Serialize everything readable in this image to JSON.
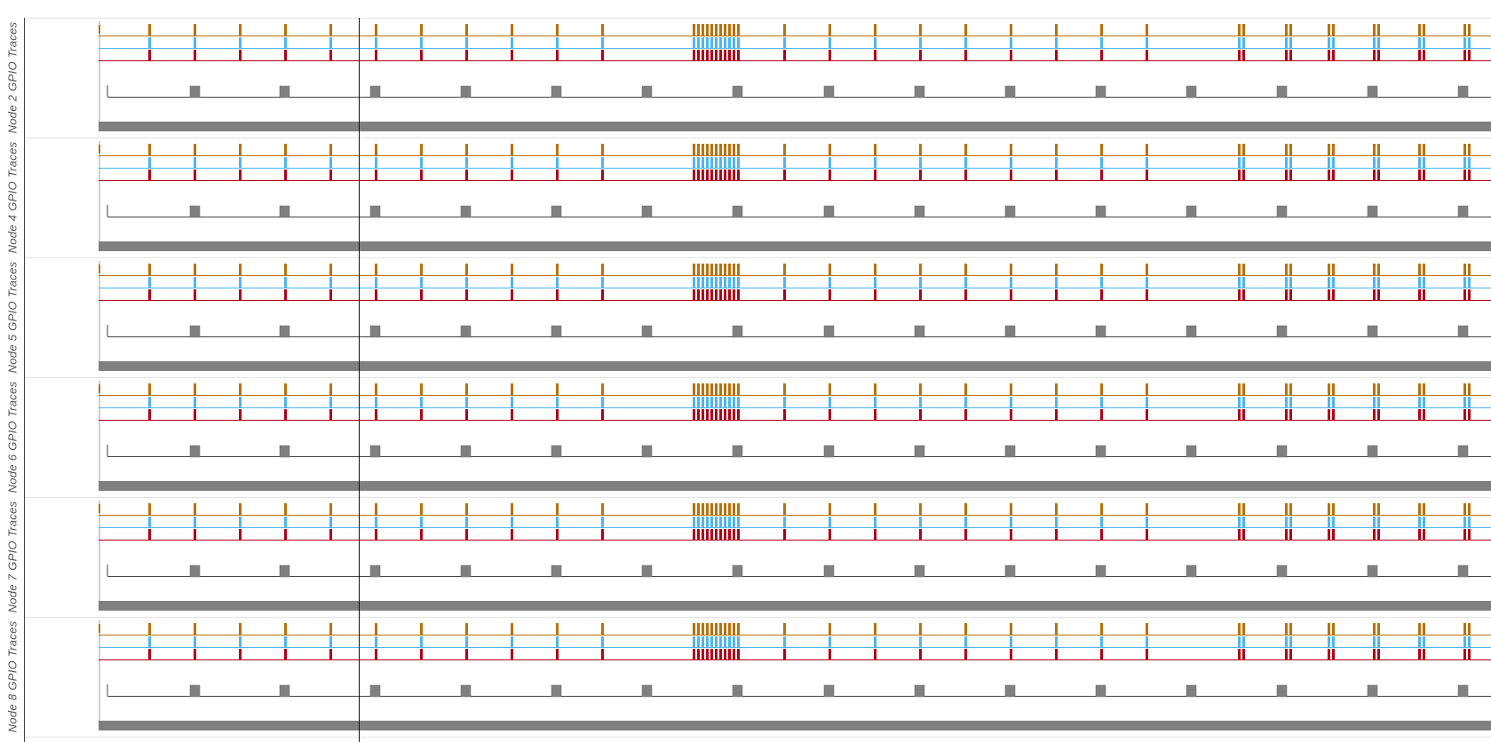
{
  "view": {
    "panels": [
      {
        "label": "Node 2  GPIO Traces"
      },
      {
        "label": "Node 4  GPIO Traces"
      },
      {
        "label": "Node 5  GPIO Traces"
      },
      {
        "label": "Node 6  GPIO Traces"
      },
      {
        "label": "Node 7  GPIO Traces"
      },
      {
        "label": "Node 8  GPIO Traces"
      }
    ],
    "colors": {
      "orange": "#b8720c",
      "blue": "#4fb5f0",
      "red": "#b00018",
      "grey": "#808080",
      "line": "#444444"
    }
  }
}
